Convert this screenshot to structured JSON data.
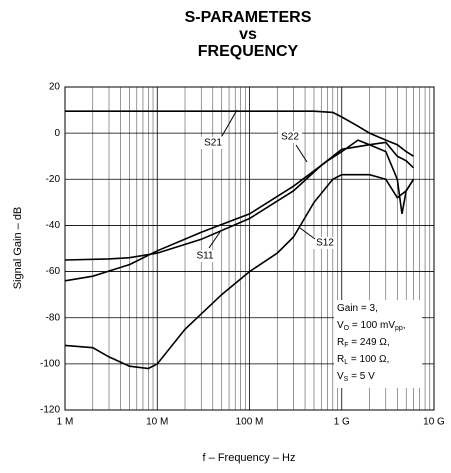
{
  "chart_data": {
    "type": "line",
    "title": [
      "S-PARAMETERS",
      "vs",
      "FREQUENCY"
    ],
    "x_label": "f – Frequency – Hz",
    "y_label": "Signal Gain – dB",
    "x_scale": "log",
    "xlim": [
      1000000,
      10000000000
    ],
    "xticks": [
      {
        "value": 1000000,
        "label": "1 M"
      },
      {
        "value": 10000000,
        "label": "10 M"
      },
      {
        "value": 100000000,
        "label": "100 M"
      },
      {
        "value": 1000000000,
        "label": "1 G"
      },
      {
        "value": 10000000000,
        "label": "10 G"
      }
    ],
    "ylim": [
      -120,
      20
    ],
    "yticks": [
      -120,
      -100,
      -80,
      -60,
      -40,
      -20,
      0,
      20
    ],
    "grid": true,
    "minor_grid": true,
    "series": [
      {
        "name": "S21",
        "color": "#000000",
        "x": [
          1000000,
          10000000,
          100000000,
          500000000,
          800000000,
          1000000000,
          1500000000,
          2000000000,
          3000000000,
          4000000000,
          5000000000,
          6000000000
        ],
        "values": [
          9.5,
          9.5,
          9.5,
          9.5,
          9,
          7,
          3,
          0,
          -3,
          -5,
          -8,
          -10
        ]
      },
      {
        "name": "S22",
        "color": "#000000",
        "x": [
          1000000,
          3000000,
          5000000,
          10000000,
          30000000,
          100000000,
          300000000,
          600000000,
          1000000000,
          2000000000,
          3000000000,
          4000000000,
          5000000000,
          6000000000
        ],
        "values": [
          -55,
          -54.5,
          -54,
          -52,
          -46,
          -37,
          -25,
          -14,
          -7,
          -5,
          -4,
          -10,
          -12,
          -15
        ]
      },
      {
        "name": "S11",
        "color": "#000000",
        "x": [
          1000000,
          2000000,
          5000000,
          10000000,
          30000000,
          100000000,
          300000000,
          700000000,
          1000000000,
          1500000000,
          2000000000,
          3000000000,
          4000000000,
          4500000000,
          5000000000,
          6000000000
        ],
        "values": [
          -64,
          -62,
          -57,
          -51,
          -43,
          -35,
          -23,
          -12,
          -8,
          -3,
          -5,
          -8,
          -20,
          -35,
          -25,
          -20
        ]
      },
      {
        "name": "S12",
        "color": "#000000",
        "x": [
          1000000,
          2000000,
          3000000,
          5000000,
          8000000,
          10000000,
          20000000,
          50000000,
          100000000,
          200000000,
          300000000,
          500000000,
          800000000,
          1000000000,
          2000000000,
          3000000000,
          4000000000,
          5000000000,
          6000000000
        ],
        "values": [
          -92,
          -93,
          -97,
          -101,
          -102,
          -100,
          -85,
          -70,
          -60,
          -52,
          -45,
          -30,
          -20,
          -18,
          -18,
          -20,
          -28,
          -25,
          -20
        ]
      }
    ],
    "annotation": [
      [
        {
          "text": "Gain = 3,"
        }
      ],
      [
        {
          "text": "V"
        },
        {
          "text": "O",
          "sub": true
        },
        {
          "text": " = 100 mV"
        },
        {
          "text": "pp",
          "sub": true
        },
        {
          "text": ","
        }
      ],
      [
        {
          "text": "R"
        },
        {
          "text": "F",
          "sub": true
        },
        {
          "text": " = 249 Ω,"
        }
      ],
      [
        {
          "text": "R"
        },
        {
          "text": "L",
          "sub": true
        },
        {
          "text": " = 100 Ω,"
        }
      ],
      [
        {
          "text": "V"
        },
        {
          "text": "S",
          "sub": true
        },
        {
          "text": " = 5 V"
        }
      ]
    ]
  }
}
